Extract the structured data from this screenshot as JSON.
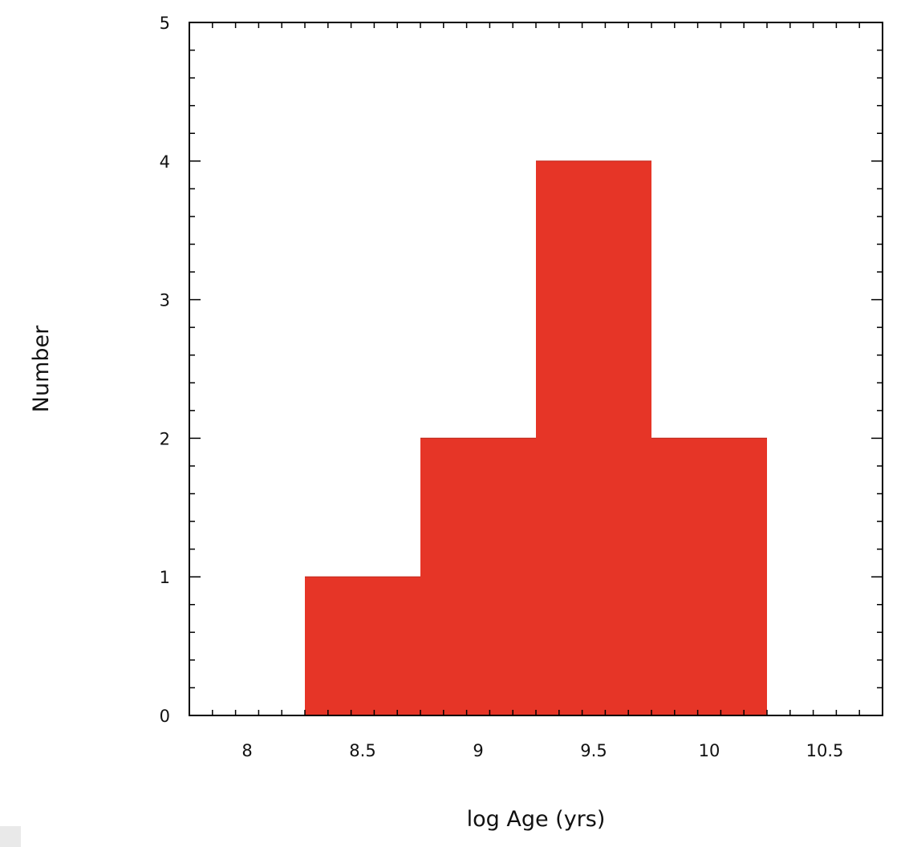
{
  "chart_data": {
    "type": "histogram",
    "xlabel": "log Age (yrs)",
    "ylabel": "Number",
    "xlim": [
      7.75,
      10.75
    ],
    "ylim": [
      0,
      5
    ],
    "x_ticks": [
      8,
      8.5,
      9,
      9.5,
      10,
      10.5
    ],
    "x_tick_labels": [
      "8",
      "8.5",
      "9",
      "9.5",
      "10",
      "10.5"
    ],
    "y_ticks": [
      0,
      1,
      2,
      3,
      4,
      5
    ],
    "y_tick_labels": [
      "0",
      "1",
      "2",
      "3",
      "4",
      "5"
    ],
    "bins": [
      {
        "x0": 8.25,
        "x1": 8.75,
        "count": 1
      },
      {
        "x0": 8.75,
        "x1": 9.25,
        "count": 2
      },
      {
        "x0": 9.25,
        "x1": 9.75,
        "count": 4
      },
      {
        "x0": 9.75,
        "x1": 10.25,
        "count": 2
      }
    ],
    "bar_color": "#e63527",
    "grid": false,
    "legend": "none"
  }
}
